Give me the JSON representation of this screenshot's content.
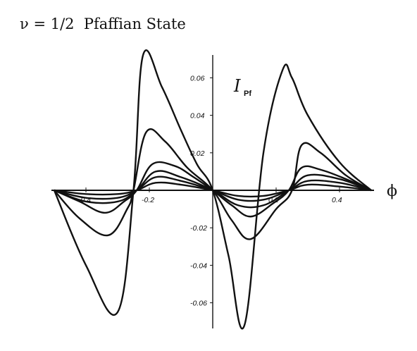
{
  "title": "ν = 1/2  Pfaffian State",
  "chart_data": {
    "type": "line",
    "title": "ν = 1/2  Pfaffian State",
    "xlabel": "ϕ",
    "ylabel": "I",
    "ylabel_sub": "Pf",
    "xlim": [
      -0.5,
      0.5
    ],
    "ylim": [
      -0.075,
      0.075
    ],
    "x_ticks": [
      -0.4,
      -0.2,
      0.2,
      0.4
    ],
    "x_tick_labels": [
      "-0.4",
      "-0.2",
      "0.2",
      "0.4"
    ],
    "y_ticks": [
      0.06,
      0.04,
      0.02,
      -0.02,
      -0.04,
      -0.06
    ],
    "y_tick_labels": [
      "0.06",
      "0.04",
      "0.02",
      "-0.02",
      "-0.04",
      "-0.06"
    ],
    "grid": false,
    "legend": "none",
    "series": [
      {
        "x": [
          -0.5,
          -0.4,
          -0.3,
          -0.25,
          -0.22,
          -0.16,
          -0.1,
          -0.05,
          0.0,
          0.05,
          0.1,
          0.16,
          0.22,
          0.25,
          0.3,
          0.4,
          0.5
        ],
        "y": [
          0.0,
          -0.04,
          -0.065,
          0.0,
          0.072,
          0.055,
          0.032,
          0.014,
          0.0,
          -0.035,
          -0.072,
          0.02,
          0.064,
          0.06,
          0.04,
          0.015,
          0.0
        ]
      },
      {
        "x": [
          -0.5,
          -0.42,
          -0.33,
          -0.27,
          -0.25,
          -0.21,
          -0.15,
          -0.08,
          0.0,
          0.06,
          0.12,
          0.2,
          0.25,
          0.28,
          0.34,
          0.42,
          0.5
        ],
        "y": [
          0.0,
          -0.015,
          -0.024,
          -0.01,
          0.0,
          0.031,
          0.026,
          0.012,
          0.0,
          -0.016,
          -0.026,
          -0.01,
          0.0,
          0.024,
          0.02,
          0.008,
          0.0
        ]
      },
      {
        "x": [
          -0.5,
          -0.42,
          -0.34,
          -0.28,
          -0.24,
          -0.19,
          -0.12,
          -0.06,
          0.0,
          0.06,
          0.12,
          0.19,
          0.24,
          0.28,
          0.34,
          0.42,
          0.5
        ],
        "y": [
          0.0,
          -0.006,
          -0.012,
          -0.006,
          0.0,
          0.014,
          0.013,
          0.007,
          0.0,
          -0.008,
          -0.014,
          -0.007,
          0.0,
          0.012,
          0.011,
          0.006,
          0.0
        ]
      },
      {
        "x": [
          -0.5,
          -0.4,
          -0.3,
          -0.24,
          -0.18,
          -0.1,
          0.0,
          0.08,
          0.16,
          0.24,
          0.3,
          0.4,
          0.5
        ],
        "y": [
          0.0,
          -0.006,
          -0.006,
          0.0,
          0.01,
          0.007,
          0.0,
          -0.008,
          -0.008,
          0.0,
          0.008,
          0.006,
          0.0
        ]
      },
      {
        "x": [
          -0.5,
          -0.4,
          -0.3,
          -0.24,
          -0.18,
          -0.1,
          0.0,
          0.08,
          0.16,
          0.24,
          0.3,
          0.4,
          0.5
        ],
        "y": [
          0.0,
          -0.004,
          -0.004,
          0.0,
          0.007,
          0.005,
          0.0,
          -0.005,
          -0.005,
          0.0,
          0.005,
          0.004,
          0.0
        ]
      },
      {
        "x": [
          -0.5,
          -0.4,
          -0.3,
          -0.24,
          -0.18,
          -0.1,
          0.0,
          0.08,
          0.16,
          0.24,
          0.3,
          0.4,
          0.5
        ],
        "y": [
          0.0,
          -0.002,
          -0.002,
          0.0,
          0.004,
          0.003,
          0.0,
          -0.003,
          -0.003,
          0.0,
          0.003,
          0.002,
          0.0
        ]
      }
    ]
  }
}
